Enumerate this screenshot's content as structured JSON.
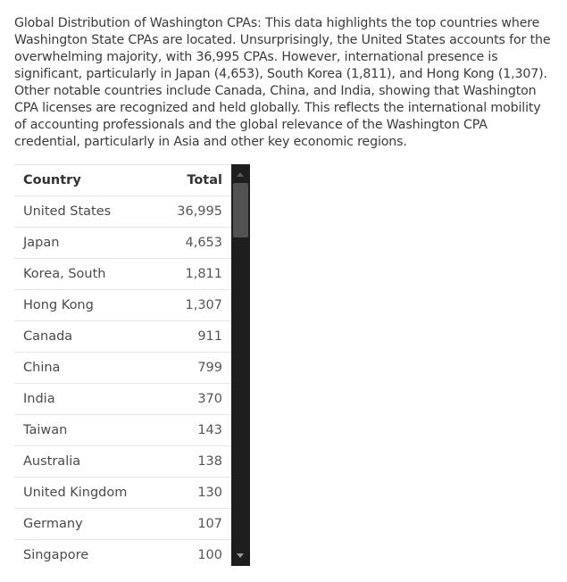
{
  "description": "Global Distribution of Washington CPAs: This data highlights the top countries where Washington State CPAs are located. Unsurprisingly, the United States accounts for the overwhelming majority, with 36,995 CPAs. However, international presence is significant, particularly in Japan (4,653), South Korea (1,811), and Hong Kong (1,307). Other notable countries include Canada, China, and India, showing that Washington CPA licenses are recognized and held globally. This reflects the international mobility of accounting professionals and the global relevance of the Washington CPA credential, particularly in Asia and other key economic regions.",
  "table": {
    "headers": {
      "country": "Country",
      "total": "Total"
    },
    "rows": [
      {
        "country": "United States",
        "total": "36,995"
      },
      {
        "country": "Japan",
        "total": "4,653"
      },
      {
        "country": "Korea, South",
        "total": "1,811"
      },
      {
        "country": "Hong Kong",
        "total": "1,307"
      },
      {
        "country": "Canada",
        "total": "911"
      },
      {
        "country": "China",
        "total": "799"
      },
      {
        "country": "India",
        "total": "370"
      },
      {
        "country": "Taiwan",
        "total": "143"
      },
      {
        "country": "Australia",
        "total": "138"
      },
      {
        "country": "United Kingdom",
        "total": "130"
      },
      {
        "country": "Germany",
        "total": "107"
      },
      {
        "country": "Singapore",
        "total": "100"
      }
    ]
  },
  "colors": {
    "scrollbar_track": "#1e1e1e",
    "scrollbar_thumb": "#525252",
    "row_divider": "#e6e6e6"
  },
  "icons": {
    "scroll_up": "scroll-up-arrow-icon",
    "scroll_down": "scroll-down-arrow-icon"
  }
}
